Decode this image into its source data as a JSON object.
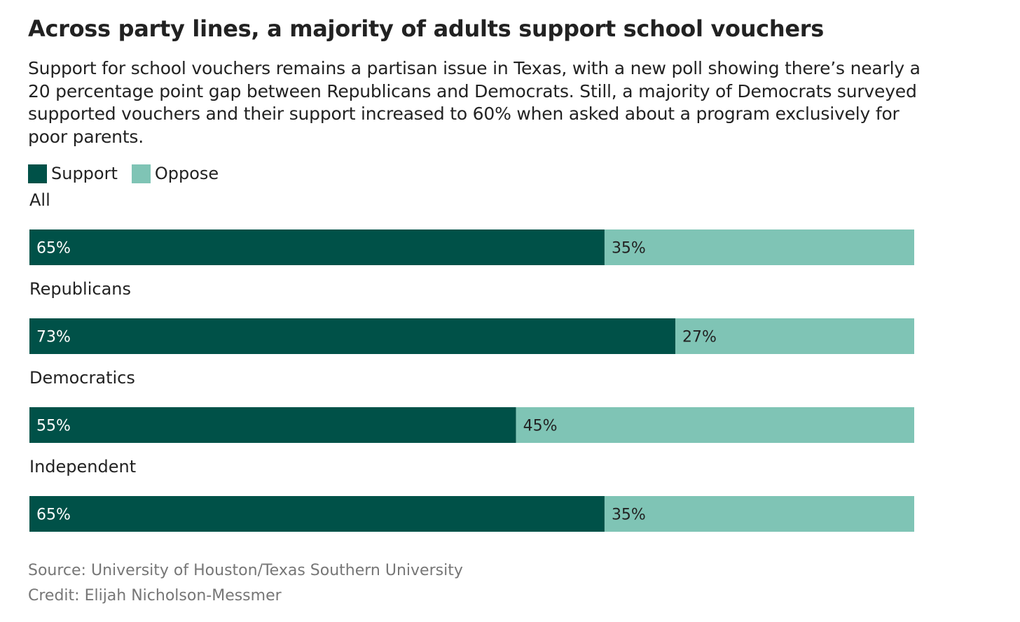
{
  "title": "Across party lines, a majority of adults support school vouchers",
  "subtitle": "Support for school vouchers remains a partisan issue in Texas, with a new poll showing there’s nearly a 20 percentage point gap between Republicans and Democrats. Still, a majority of Democrats surveyed supported vouchers and their support increased to 60% when asked about a program exclusively for poor parents.",
  "legend": [
    {
      "label": "Support",
      "color": "#005148"
    },
    {
      "label": "Oppose",
      "color": "#7fc4b5"
    }
  ],
  "chart_data": {
    "type": "bar",
    "orientation": "horizontal",
    "stacked": true,
    "normalized_percent": true,
    "title": "Across party lines, a majority of adults support school vouchers",
    "categories": [
      "All",
      "Republicans",
      "Democratics",
      "Independent"
    ],
    "series": [
      {
        "name": "Support",
        "color": "#005148",
        "values": [
          65,
          73,
          55,
          65
        ],
        "labels": [
          "65%",
          "73%",
          "55%",
          "65%"
        ]
      },
      {
        "name": "Oppose",
        "color": "#7fc4b5",
        "values": [
          35,
          27,
          45,
          35
        ],
        "labels": [
          "35%",
          "27%",
          "45%",
          "35%"
        ]
      }
    ],
    "xlim": [
      0,
      100
    ],
    "grid": false,
    "legend_position": "top-left"
  },
  "source": "Source: University of Houston/Texas Southern University",
  "credit": "Credit: Elijah Nicholson-Messmer"
}
